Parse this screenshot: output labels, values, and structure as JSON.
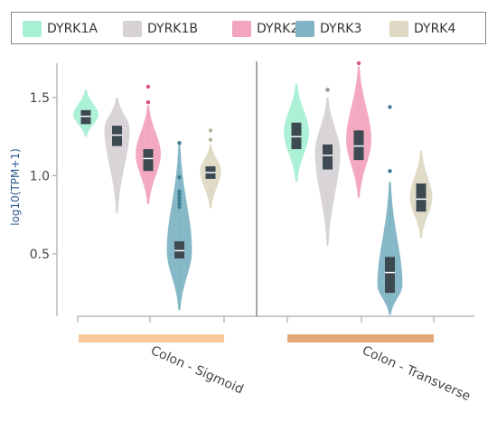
{
  "chart_data": {
    "type": "violin",
    "ylabel": "log10(TPM+1)",
    "ylim": [
      0.1,
      1.72
    ],
    "yticks": [
      0.5,
      1.0,
      1.5
    ],
    "grid": false,
    "legend_position": "top",
    "groups": [
      "Colon - Sigmoid",
      "Colon - Transverse"
    ],
    "group_bar_colors": [
      "#f7c99c",
      "#e3a878"
    ],
    "series": [
      {
        "name": "DYRK1A",
        "color": "#a8f0d4",
        "box_color": "#3d4a52"
      },
      {
        "name": "DYRK1B",
        "color": "#d6d2d6",
        "box_color": "#3d4a52"
      },
      {
        "name": "DYRK2",
        "color": "#f2a5bd",
        "box_color": "#3d4a52"
      },
      {
        "name": "DYRK3",
        "color": "#7fb4c4",
        "box_color": "#3d4a52"
      },
      {
        "name": "DYRK4",
        "color": "#ddd9c4",
        "box_color": "#3d4a52"
      }
    ],
    "violins": [
      {
        "group": 0,
        "series": 0,
        "min": 1.25,
        "max": 1.55,
        "q1": 1.33,
        "median": 1.38,
        "q3": 1.42,
        "peak": 1.39,
        "width": 0.9,
        "outliers": []
      },
      {
        "group": 0,
        "series": 1,
        "min": 0.76,
        "max": 1.5,
        "q1": 1.19,
        "median": 1.26,
        "q3": 1.32,
        "peak": 1.3,
        "width": 0.9,
        "outliers": []
      },
      {
        "group": 0,
        "series": 2,
        "min": 0.82,
        "max": 1.45,
        "q1": 1.03,
        "median": 1.11,
        "q3": 1.17,
        "peak": 1.14,
        "width": 0.9,
        "outliers": [
          1.57,
          1.47
        ]
      },
      {
        "group": 0,
        "series": 3,
        "min": 0.14,
        "max": 1.2,
        "q1": 0.47,
        "median": 0.52,
        "q3": 0.58,
        "peak": 0.52,
        "width": 0.9,
        "outliers": [
          1.21,
          0.99,
          0.9,
          0.88,
          0.86,
          0.84,
          0.82,
          0.8
        ]
      },
      {
        "group": 0,
        "series": 4,
        "min": 0.79,
        "max": 1.2,
        "q1": 0.98,
        "median": 1.02,
        "q3": 1.06,
        "peak": 1.03,
        "width": 0.75,
        "outliers": [
          1.29,
          1.23
        ]
      },
      {
        "group": 1,
        "series": 0,
        "min": 0.96,
        "max": 1.59,
        "q1": 1.17,
        "median": 1.25,
        "q3": 1.34,
        "peak": 1.28,
        "width": 0.9,
        "outliers": []
      },
      {
        "group": 1,
        "series": 1,
        "min": 0.55,
        "max": 1.5,
        "q1": 1.04,
        "median": 1.13,
        "q3": 1.2,
        "peak": 1.15,
        "width": 0.9,
        "outliers": [
          1.55,
          1.55
        ]
      },
      {
        "group": 1,
        "series": 2,
        "min": 0.86,
        "max": 1.7,
        "q1": 1.1,
        "median": 1.19,
        "q3": 1.29,
        "peak": 1.23,
        "width": 0.9,
        "outliers": [
          1.72
        ]
      },
      {
        "group": 1,
        "series": 3,
        "min": 0.11,
        "max": 0.96,
        "q1": 0.25,
        "median": 0.38,
        "q3": 0.48,
        "peak": 0.3,
        "width": 0.9,
        "outliers": [
          1.44,
          1.03
        ]
      },
      {
        "group": 1,
        "series": 4,
        "min": 0.6,
        "max": 1.16,
        "q1": 0.77,
        "median": 0.85,
        "q3": 0.95,
        "peak": 0.86,
        "width": 0.8,
        "outliers": []
      }
    ]
  }
}
